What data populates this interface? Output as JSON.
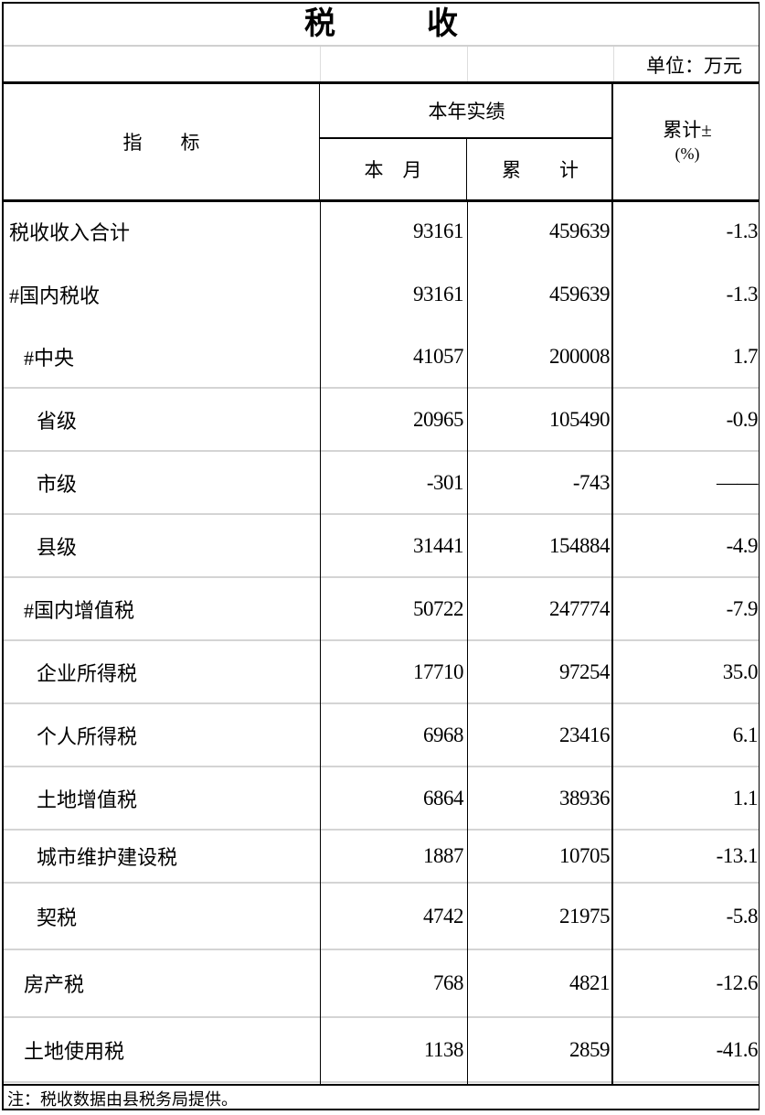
{
  "title": [
    "税",
    "收"
  ],
  "unit": "单位：万元",
  "header": {
    "indicator": "指　　标",
    "current_year": "本年实绩",
    "this_month": "本　月",
    "cumulative": "累　　计",
    "cum_change": "累计±",
    "cum_change_unit": "(%)"
  },
  "rows": [
    {
      "name": "税收收入合计",
      "indent": 0,
      "month": "93161",
      "cumulative": "459639",
      "change": "-1.3"
    },
    {
      "name": "#国内税收",
      "indent": 0,
      "month": "93161",
      "cumulative": "459639",
      "change": "-1.3"
    },
    {
      "name": "#中央",
      "indent": 1,
      "month": "41057",
      "cumulative": "200008",
      "change": "1.7"
    },
    {
      "name": "省级",
      "indent": 2,
      "month": "20965",
      "cumulative": "105490",
      "change": "-0.9"
    },
    {
      "name": "市级",
      "indent": 2,
      "month": "-301",
      "cumulative": "-743",
      "change": "——"
    },
    {
      "name": "县级",
      "indent": 2,
      "month": "31441",
      "cumulative": "154884",
      "change": "-4.9"
    },
    {
      "name": "#国内增值税",
      "indent": 1,
      "month": "50722",
      "cumulative": "247774",
      "change": "-7.9"
    },
    {
      "name": "企业所得税",
      "indent": 2,
      "month": "17710",
      "cumulative": "97254",
      "change": "35.0"
    },
    {
      "name": "个人所得税",
      "indent": 2,
      "month": "6968",
      "cumulative": "23416",
      "change": "6.1"
    },
    {
      "name": "土地增值税",
      "indent": 2,
      "month": "6864",
      "cumulative": "38936",
      "change": "1.1"
    },
    {
      "name": "城市维护建设税",
      "indent": 2,
      "month": "1887",
      "cumulative": "10705",
      "change": "-13.1"
    },
    {
      "name": "契税",
      "indent": 2,
      "month": "4742",
      "cumulative": "21975",
      "change": "-5.8"
    },
    {
      "name": "房产税",
      "indent": 1,
      "month": "768",
      "cumulative": "4821",
      "change": "-12.6"
    },
    {
      "name": "土地使用税",
      "indent": 1,
      "month": "1138",
      "cumulative": "2859",
      "change": "-41.6"
    }
  ],
  "footnote": "注：税收数据由县税务局提供。"
}
